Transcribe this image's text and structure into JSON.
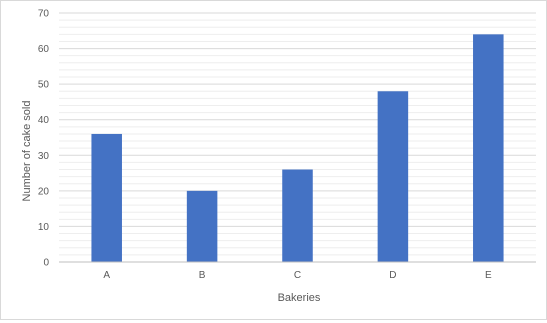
{
  "chart_data": {
    "type": "bar",
    "categories": [
      "A",
      "B",
      "C",
      "D",
      "E"
    ],
    "values": [
      36,
      20,
      26,
      48,
      64
    ],
    "title": "",
    "xlabel": "Bakeries",
    "ylabel": "Number of cake sold",
    "ylim": [
      0,
      70
    ],
    "yticks": [
      0,
      10,
      20,
      30,
      40,
      50,
      60,
      70
    ],
    "grid": true,
    "legend": "none",
    "colors": {
      "bar": "#4472C4",
      "grid": "#d9d9d9",
      "minor_grid": "#eeeeee",
      "axis": "#bfbfbf",
      "text": "#595959"
    }
  }
}
